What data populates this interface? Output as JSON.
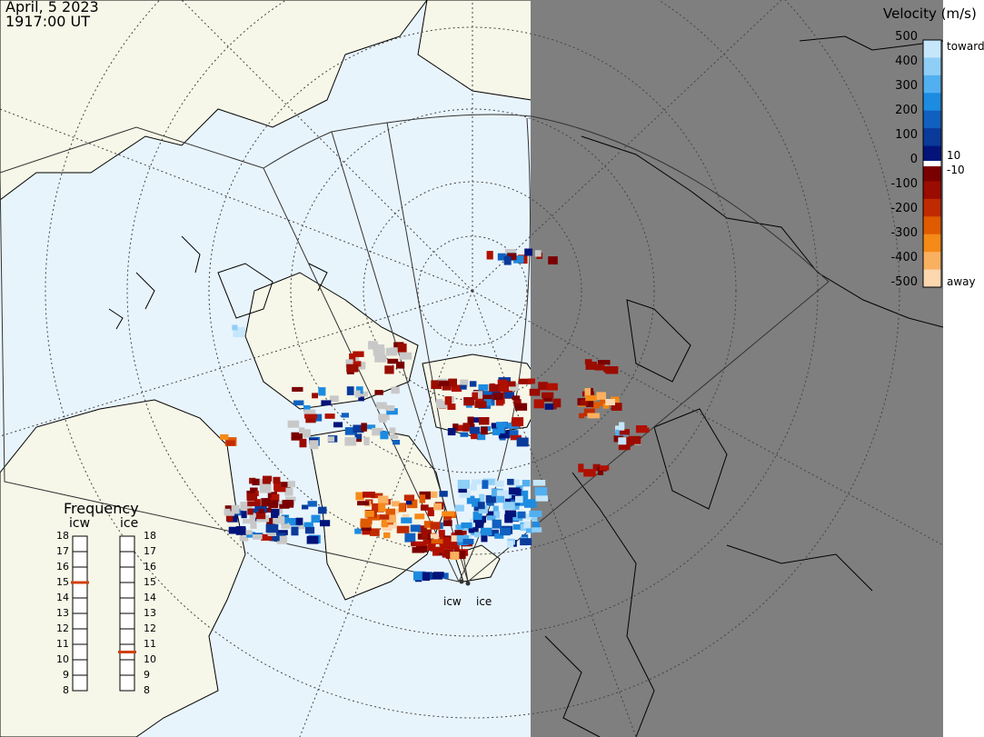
{
  "header": {
    "date": "April, 5 2023",
    "time": "1917:00 UT"
  },
  "colors": {
    "ocean": "#e8f4fc",
    "land": "#f6f7e8",
    "night": "#7f7f7f",
    "grid": "#555555",
    "coast": "#000000",
    "ground_scatter": "#c8c8c8"
  },
  "legend": {
    "title": "Velocity (m/s)",
    "ticks": [
      "500",
      "400",
      "300",
      "200",
      "100",
      "0",
      "-100",
      "-200",
      "-300",
      "-400",
      "-500"
    ],
    "near_zero_labels": [
      "10",
      "-10"
    ],
    "toward_label": "toward",
    "away_label": "away",
    "colors_top_to_bottom": [
      "#c6e6fb",
      "#8fcff7",
      "#52b0f0",
      "#1c8be0",
      "#1060c0",
      "#0a3a9a",
      "#02147a",
      "#7a0000",
      "#9a0c00",
      "#c02a00",
      "#e05a00",
      "#f58a18",
      "#f9b060",
      "#fcd7b0"
    ]
  },
  "frequency": {
    "title": "Frequency",
    "columns": [
      {
        "name": "icw",
        "labels": [
          "18",
          "17",
          "16",
          "15",
          "14",
          "13",
          "12",
          "11",
          "10",
          "9",
          "8"
        ],
        "value": 15
      },
      {
        "name": "ice",
        "labels": [
          "18",
          "17",
          "16",
          "15",
          "14",
          "13",
          "12",
          "11",
          "10",
          "9",
          "8"
        ],
        "value": 10.5
      }
    ],
    "marker_color": "#d04010"
  },
  "radars": [
    "icw",
    "ice"
  ]
}
